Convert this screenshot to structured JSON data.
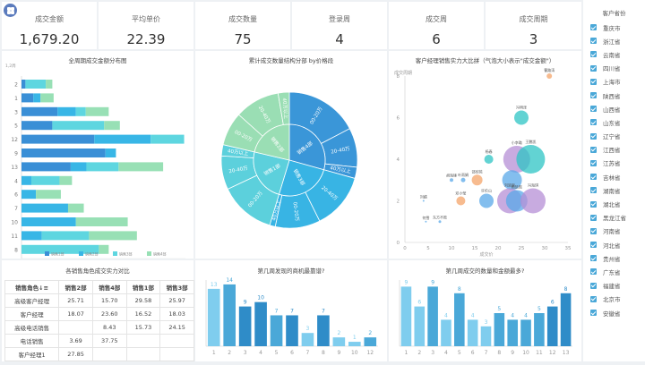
{
  "kpis": [
    {
      "label": "成交金额",
      "value": "1,679.20"
    },
    {
      "label": "平均单价",
      "value": "22.39"
    },
    {
      "label": "成交数量",
      "value": "75"
    },
    {
      "label": "登录周",
      "value": "4"
    },
    {
      "label": "成交周",
      "value": "6"
    },
    {
      "label": "成交周期",
      "value": "3"
    }
  ],
  "sidebar": {
    "title": "客户省份",
    "items": [
      "重庆市",
      "浙江省",
      "云南省",
      "四川省",
      "上海市",
      "陕西省",
      "山西省",
      "山东省",
      "辽宁省",
      "江西省",
      "江苏省",
      "吉林省",
      "湖南省",
      "湖北省",
      "黑龙江省",
      "河南省",
      "河北省",
      "贵州省",
      "广东省",
      "福建省",
      "北京市",
      "安徽省"
    ]
  },
  "chart_data": [
    {
      "type": "bar",
      "orientation": "horizontal",
      "stacked": true,
      "title": "全周期成交金额分布图",
      "ylabel": "1,2周",
      "categories": [
        "2",
        "1",
        "3",
        "5",
        "12",
        "9",
        "13",
        "4",
        "6",
        "7",
        "10",
        "11",
        "8"
      ],
      "series": [
        {
          "name": "销售1部",
          "color": "#3a8fd6",
          "values": [
            6,
            18,
            55,
            47,
            111,
            128,
            75,
            0,
            0,
            0,
            0,
            0,
            0
          ]
        },
        {
          "name": "销售2部",
          "color": "#38b6e6",
          "values": [
            0,
            11,
            28,
            0,
            86,
            16,
            24,
            15,
            22,
            71,
            83,
            31,
            0
          ]
        },
        {
          "name": "销售3部",
          "color": "#5ed6e0",
          "values": [
            31,
            0,
            15,
            79,
            51,
            0,
            49,
            43,
            0,
            0,
            0,
            72,
            118
          ]
        },
        {
          "name": "销售4部",
          "color": "#98e0b5",
          "values": [
            10,
            20,
            35,
            24,
            0,
            0,
            68,
            19,
            38,
            24,
            79,
            73,
            15
          ]
        }
      ],
      "xticks": [
        "0",
        "50",
        "100",
        "150",
        "200",
        "250"
      ],
      "xlim": [
        0,
        250
      ]
    },
    {
      "type": "sunburst",
      "title": "累计成交数量结构分部 by价格段",
      "inner": [
        {
          "name": "销售4部",
          "value": 22,
          "color": "#3a96d8"
        },
        {
          "name": "销售3部",
          "value": 19,
          "color": "#38b4e4"
        },
        {
          "name": "销售1部",
          "value": 18,
          "color": "#5cd0dc"
        },
        {
          "name": "销售2部",
          "value": 16,
          "color": "#9ade b4"
        }
      ],
      "outer": [
        {
          "name": "00-20万",
          "parent": "销售4部",
          "value": 13
        },
        {
          "name": "20-40万",
          "parent": "销售4部",
          "value": 7
        },
        {
          "name": "40万以上",
          "parent": "销售4部",
          "value": 2
        },
        {
          "name": "20-40万",
          "parent": "销售3部",
          "value": 10
        },
        {
          "name": "00-20万",
          "parent": "销售3部",
          "value": 8
        },
        {
          "name": "40万以上",
          "parent": "销售3部",
          "value": 1
        },
        {
          "name": "00-20万",
          "parent": "销售1部",
          "value": 10
        },
        {
          "name": "20-40万",
          "parent": "销售1部",
          "value": 6
        },
        {
          "name": "40万以上",
          "parent": "销售1部",
          "value": 2
        },
        {
          "name": "00-20万",
          "parent": "销售2部",
          "value": 6
        },
        {
          "name": "20-40万",
          "parent": "销售2部",
          "value": 8
        },
        {
          "name": "40万以上",
          "parent": "销售2部",
          "value": 2
        }
      ]
    },
    {
      "type": "scatter",
      "title": "客户经理销售实力大比拼（气泡大小表示\"成交金额\"）",
      "xlabel": "成交价",
      "ylabel": "成交周期",
      "xlim": [
        0,
        35
      ],
      "ylim": [
        0,
        8
      ],
      "xticks": [
        "0",
        "5",
        "10",
        "15",
        "20",
        "25",
        "30",
        "35"
      ],
      "yticks": [
        "0",
        "2",
        "4",
        "6",
        "8"
      ],
      "points": [
        {
          "label": "曹路涛",
          "x": 31,
          "y": 8,
          "r": 3,
          "color": "#f4a46a"
        },
        {
          "label": "冯明泽",
          "x": 25,
          "y": 6,
          "r": 8,
          "color": "#2ec4c4"
        },
        {
          "label": "杨春",
          "x": 18,
          "y": 4,
          "r": 5,
          "color": "#2ec4c4"
        },
        {
          "label": "小李璐",
          "x": 24,
          "y": 4,
          "r": 15,
          "color": "#b58fd6"
        },
        {
          "label": "王鹏凯",
          "x": 27,
          "y": 4,
          "r": 16,
          "color": "#2ec4c4"
        },
        {
          "label": "胡海锋",
          "x": 10,
          "y": 3,
          "r": 2,
          "color": "#5aa8e8"
        },
        {
          "label": "叶雨娟",
          "x": 12.5,
          "y": 3,
          "r": 2.5,
          "color": "#5aa8e8"
        },
        {
          "label": "邵欣苑",
          "x": 15.5,
          "y": 3,
          "r": 6,
          "color": "#f4a46a"
        },
        {
          "label": "",
          "x": 23,
          "y": 3,
          "r": 11,
          "color": "#5aa8e8"
        },
        {
          "label": "邓小莹",
          "x": 12,
          "y": 2,
          "r": 5,
          "color": "#f4a46a"
        },
        {
          "label": "许伦山",
          "x": 17.5,
          "y": 2,
          "r": 8,
          "color": "#5aa8e8"
        },
        {
          "label": "刘梁新",
          "x": 22.5,
          "y": 2,
          "r": 14,
          "color": "#b58fd6"
        },
        {
          "label": "杨凯熙",
          "x": 24,
          "y": 2,
          "r": 12,
          "color": "#5aa8e8"
        },
        {
          "label": "冯海琪",
          "x": 27.5,
          "y": 2,
          "r": 14,
          "color": "#b58fd6"
        },
        {
          "label": "刘婧",
          "x": 4,
          "y": 2,
          "r": 1,
          "color": "#5aa8e8"
        },
        {
          "label": "何雪",
          "x": 4.5,
          "y": 1,
          "r": 1,
          "color": "#5aa8e8"
        },
        {
          "label": "东方不败",
          "x": 7.5,
          "y": 1,
          "r": 1.5,
          "color": "#5aa8e8"
        }
      ]
    },
    {
      "type": "table",
      "title": "各销售角色成交实力对比",
      "headers": [
        "销售角色↓≡",
        "销售2部",
        "销售4部",
        "销售1部",
        "销售3部"
      ],
      "rows": [
        [
          "高级客户经理",
          "25.71",
          "15.70",
          "29.58",
          "25.97"
        ],
        [
          "客户经理",
          "18.07",
          "23.60",
          "16.52",
          "18.03"
        ],
        [
          "高级电话销售",
          "",
          "8.43",
          "15.73",
          "24.15"
        ],
        [
          "电话销售",
          "3.69",
          "37.75",
          "",
          ""
        ],
        [
          "客户经理1",
          "27.85",
          "",
          "",
          ""
        ]
      ]
    },
    {
      "type": "bar",
      "title": "第几周发现的商机最靠谱?",
      "categories": [
        "1",
        "2",
        "3",
        "4",
        "5",
        "6",
        "7",
        "8",
        "9",
        "10",
        "12"
      ],
      "values": [
        13,
        14,
        9,
        10,
        7,
        7,
        3,
        7,
        2,
        1,
        2
      ],
      "colors": [
        "#7fcdee",
        "#4aa8d8",
        "#2f8cc8",
        "#2f8cc8",
        "#4aa8d8",
        "#2f8cc8",
        "#7fcdee",
        "#2f8cc8",
        "#7fcdee",
        "#7fcdee",
        "#4aa8d8"
      ],
      "ylim": [
        0,
        15
      ]
    },
    {
      "type": "bar",
      "title": "第几周成交的数量和金额最多?",
      "categories": [
        "1",
        "2",
        "3",
        "4",
        "5",
        "6",
        "7",
        "8",
        "9",
        "10",
        "11",
        "12",
        "13"
      ],
      "values": [
        9,
        6,
        9,
        4,
        8,
        4,
        3,
        5,
        4,
        4,
        5,
        6,
        8
      ],
      "colors": [
        "#7fcdee",
        "#7fcdee",
        "#4aa8d8",
        "#7fcdee",
        "#4aa8d8",
        "#7fcdee",
        "#7fcdee",
        "#4aa8d8",
        "#4aa8d8",
        "#4aa8d8",
        "#4aa8d8",
        "#2f8cc8",
        "#2f8cc8"
      ],
      "ylim": [
        0,
        10
      ]
    }
  ]
}
